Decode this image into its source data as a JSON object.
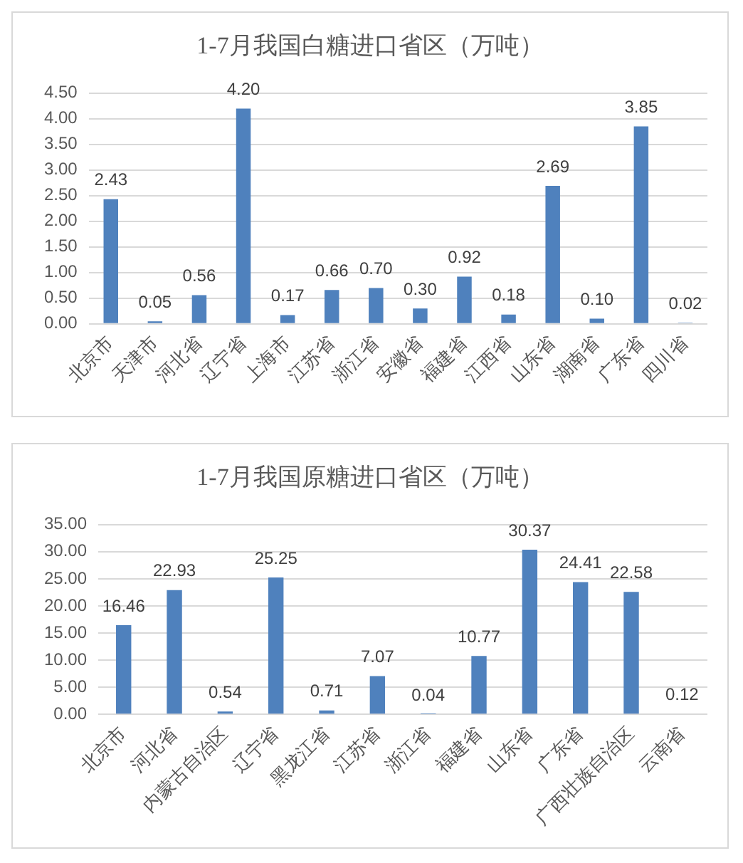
{
  "chart_data": [
    {
      "type": "bar",
      "title": "1-7月我国白糖进口省区（万吨）",
      "categories": [
        "北京市",
        "天津市",
        "河北省",
        "辽宁省",
        "上海市",
        "江苏省",
        "浙江省",
        "安徽省",
        "福建省",
        "江西省",
        "山东省",
        "湖南省",
        "广东省",
        "四川省"
      ],
      "values": [
        2.43,
        0.05,
        0.56,
        4.2,
        0.17,
        0.66,
        0.7,
        0.3,
        0.92,
        0.18,
        2.69,
        0.1,
        3.85,
        0.02
      ],
      "value_labels": [
        "2.43",
        "0.05",
        "0.56",
        "4.20",
        "0.17",
        "0.66",
        "0.70",
        "0.30",
        "0.92",
        "0.18",
        "2.69",
        "0.10",
        "3.85",
        "0.02"
      ],
      "color": "#4f81bd",
      "ylim": [
        0,
        4.5
      ],
      "yticks": [
        {
          "value": 0,
          "label": "0.00"
        },
        {
          "value": 0.5,
          "label": "0.50"
        },
        {
          "value": 1,
          "label": "1.00"
        },
        {
          "value": 1.5,
          "label": "1.50"
        },
        {
          "value": 2,
          "label": "2.00"
        },
        {
          "value": 2.5,
          "label": "2.50"
        },
        {
          "value": 3,
          "label": "3.00"
        },
        {
          "value": 3.5,
          "label": "3.50"
        },
        {
          "value": 4,
          "label": "4.00"
        },
        {
          "value": 4.5,
          "label": "4.50"
        }
      ],
      "grid": "y"
    },
    {
      "type": "bar",
      "title": "1-7月我国原糖进口省区（万吨）",
      "categories": [
        "北京市",
        "河北省",
        "内蒙古自治区",
        "辽宁省",
        "黑龙江省",
        "江苏省",
        "浙江省",
        "福建省",
        "山东省",
        "广东省",
        "广西壮族自治区",
        "云南省"
      ],
      "values": [
        16.46,
        22.93,
        0.54,
        25.25,
        0.71,
        7.07,
        0.04,
        10.77,
        30.37,
        24.41,
        22.58,
        0.12
      ],
      "value_labels": [
        "16.46",
        "22.93",
        "0.54",
        "25.25",
        "0.71",
        "7.07",
        "0.04",
        "10.77",
        "30.37",
        "24.41",
        "22.58",
        "0.12"
      ],
      "color": "#4f81bd",
      "ylim": [
        0,
        35
      ],
      "yticks": [
        {
          "value": 0,
          "label": "0.00"
        },
        {
          "value": 5,
          "label": "5.00"
        },
        {
          "value": 10,
          "label": "10.00"
        },
        {
          "value": 15,
          "label": "15.00"
        },
        {
          "value": 20,
          "label": "20.00"
        },
        {
          "value": 25,
          "label": "25.00"
        },
        {
          "value": 30,
          "label": "30.00"
        },
        {
          "value": 35,
          "label": "35.00"
        }
      ],
      "grid": "y"
    }
  ]
}
